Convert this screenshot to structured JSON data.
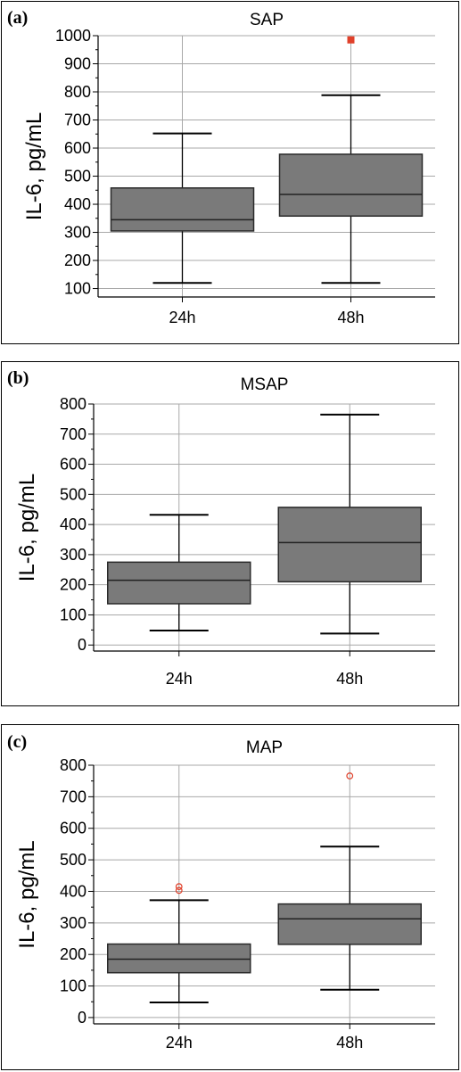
{
  "colors": {
    "box_fill": "#7a7a7a",
    "box_stroke": "#2a2a2a",
    "grid": "#a8a8a8",
    "outlier": "#e0402a"
  },
  "chart_data": [
    {
      "type": "box",
      "panel_label": "(a)",
      "title": "SAP",
      "ylabel": "IL-6, pg/mL",
      "xlabel": "",
      "ylim": [
        70,
        1000
      ],
      "yticks": [
        100,
        200,
        300,
        400,
        500,
        600,
        700,
        800,
        900,
        1000
      ],
      "grid": true,
      "categories": [
        "24h",
        "48h"
      ],
      "boxes": [
        {
          "category": "24h",
          "whisker_low": 120,
          "q1": 305,
          "median": 345,
          "q3": 458,
          "whisker_high": 652,
          "outliers": []
        },
        {
          "category": "48h",
          "whisker_low": 120,
          "q1": 358,
          "median": 435,
          "q3": 578,
          "whisker_high": 788,
          "outliers": [
            985
          ]
        }
      ],
      "outlier_marker": "square"
    },
    {
      "type": "box",
      "panel_label": "(b)",
      "title": "MSAP",
      "ylabel": "IL-6, pg/mL",
      "xlabel": "",
      "ylim": [
        -20,
        800
      ],
      "yticks": [
        0,
        100,
        200,
        300,
        400,
        500,
        600,
        700,
        800
      ],
      "grid": true,
      "categories": [
        "24h",
        "48h"
      ],
      "boxes": [
        {
          "category": "24h",
          "whisker_low": 48,
          "q1": 137,
          "median": 215,
          "q3": 275,
          "whisker_high": 432,
          "outliers": []
        },
        {
          "category": "48h",
          "whisker_low": 38,
          "q1": 210,
          "median": 340,
          "q3": 457,
          "whisker_high": 765,
          "outliers": []
        }
      ],
      "outlier_marker": "none"
    },
    {
      "type": "box",
      "panel_label": "(c)",
      "title": "MAP",
      "ylabel": "IL-6, pg/mL",
      "xlabel": "",
      "ylim": [
        -20,
        800
      ],
      "yticks": [
        0,
        100,
        200,
        300,
        400,
        500,
        600,
        700,
        800
      ],
      "grid": true,
      "categories": [
        "24h",
        "48h"
      ],
      "boxes": [
        {
          "category": "24h",
          "whisker_low": 48,
          "q1": 142,
          "median": 185,
          "q3": 233,
          "whisker_high": 372,
          "outliers": [
            403,
            415
          ]
        },
        {
          "category": "48h",
          "whisker_low": 88,
          "q1": 232,
          "median": 313,
          "q3": 360,
          "whisker_high": 542,
          "outliers": [
            766
          ]
        }
      ],
      "outlier_marker": "circle"
    }
  ]
}
